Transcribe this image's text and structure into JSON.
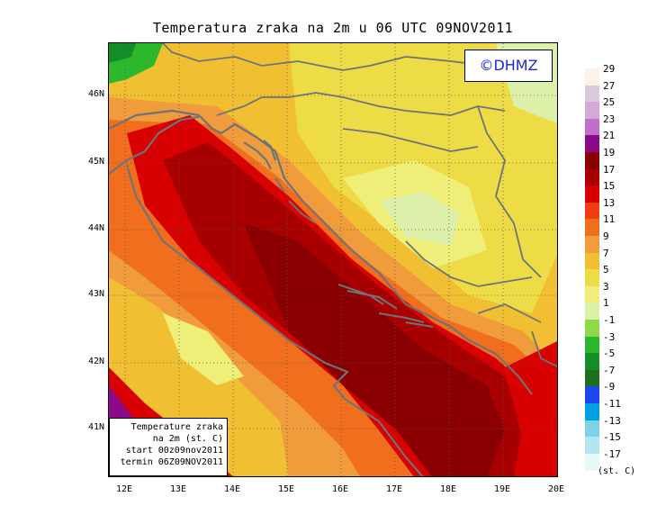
{
  "title": "Temperatura zraka na 2m u 06 UTC 09NOV2011",
  "copyright": "©DHMZ",
  "info_box": {
    "line1": "Temperature zraka",
    "line2": "na 2m (st. C)",
    "line3": "start 00z09nov2011",
    "line4": "termin 06Z09NOV2011"
  },
  "lat_ticks": [
    "46N",
    "45N",
    "44N",
    "43N",
    "42N",
    "41N"
  ],
  "lon_ticks": [
    "12E",
    "13E",
    "14E",
    "15E",
    "16E",
    "17E",
    "18E",
    "19E",
    "20E"
  ],
  "legend": {
    "labels": [
      "29",
      "27",
      "25",
      "23",
      "21",
      "19",
      "17",
      "15",
      "13",
      "11",
      "9",
      "7",
      "5",
      "3",
      "1",
      "-1",
      "-3",
      "-5",
      "-7",
      "-9",
      "-11",
      "-13",
      "-15",
      "-17"
    ],
    "colors": [
      "#fdf2e8",
      "#dcc8de",
      "#d6a8d6",
      "#c070c8",
      "#8a0a8a",
      "#8a0000",
      "#a80000",
      "#d80000",
      "#f03c14",
      "#f06e1e",
      "#f09b3c",
      "#f0c032",
      "#eedc46",
      "#eeee78",
      "#dcf0aa",
      "#8ed84a",
      "#2cb82c",
      "#148c28",
      "#1e6e1e",
      "#1e46f0",
      "#00a0e6",
      "#7ed2e6",
      "#b4e6f0",
      "#e6f8fa"
    ],
    "units": "(st. C)"
  }
}
